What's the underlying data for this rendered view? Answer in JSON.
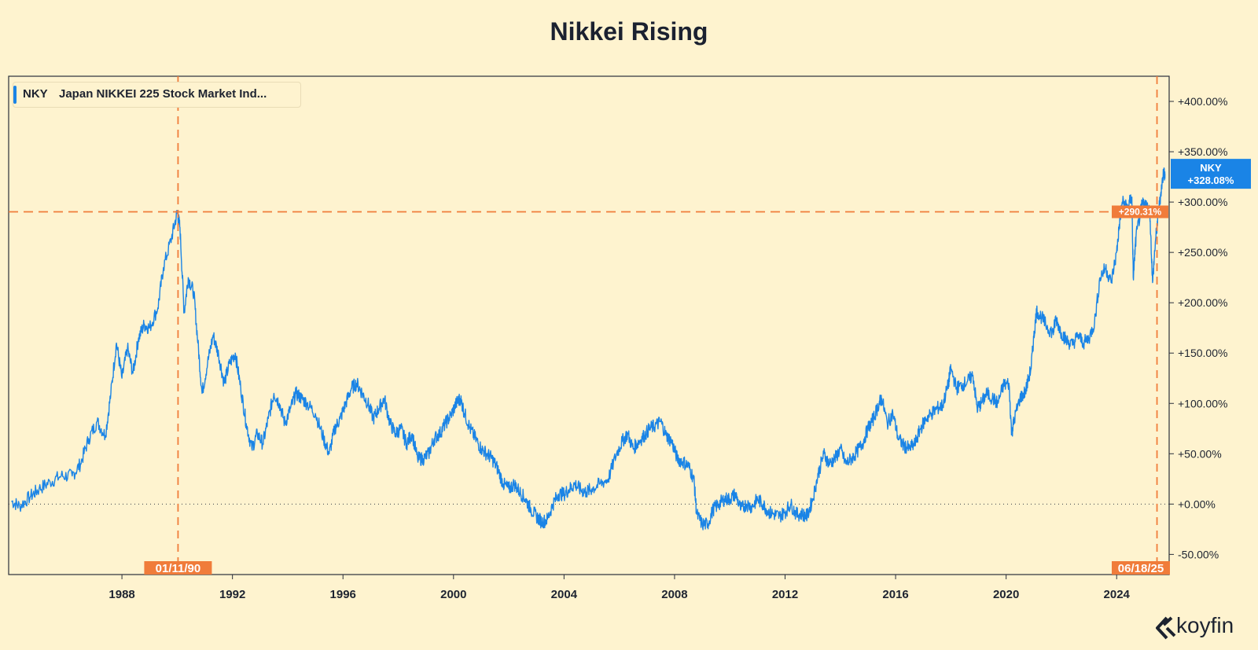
{
  "chart_data": {
    "type": "line",
    "title": "Nikkei Rising",
    "series": [
      {
        "ticker": "NKY",
        "name": "Japan NIKKEI 225 Stock Market Ind...",
        "color": "#1a84e6",
        "last_label": "+328.08%",
        "points": [
          [
            1984.0,
            3
          ],
          [
            1984.3,
            -2
          ],
          [
            1984.7,
            8
          ],
          [
            1985.0,
            15
          ],
          [
            1985.4,
            22
          ],
          [
            1985.8,
            28
          ],
          [
            1986.2,
            28
          ],
          [
            1986.5,
            40
          ],
          [
            1986.8,
            65
          ],
          [
            1987.1,
            82
          ],
          [
            1987.4,
            68
          ],
          [
            1987.6,
            110
          ],
          [
            1987.8,
            160
          ],
          [
            1988.0,
            125
          ],
          [
            1988.2,
            155
          ],
          [
            1988.4,
            130
          ],
          [
            1988.6,
            165
          ],
          [
            1988.8,
            178
          ],
          [
            1989.0,
            175
          ],
          [
            1989.3,
            195
          ],
          [
            1989.5,
            235
          ],
          [
            1989.8,
            265
          ],
          [
            1990.0,
            290
          ],
          [
            1990.1,
            275
          ],
          [
            1990.25,
            190
          ],
          [
            1990.4,
            225
          ],
          [
            1990.6,
            210
          ],
          [
            1990.75,
            160
          ],
          [
            1990.9,
            110
          ],
          [
            1991.1,
            140
          ],
          [
            1991.3,
            168
          ],
          [
            1991.5,
            148
          ],
          [
            1991.7,
            120
          ],
          [
            1991.9,
            140
          ],
          [
            1992.1,
            150
          ],
          [
            1992.3,
            115
          ],
          [
            1992.5,
            80
          ],
          [
            1992.7,
            55
          ],
          [
            1992.9,
            70
          ],
          [
            1993.1,
            60
          ],
          [
            1993.3,
            85
          ],
          [
            1993.5,
            110
          ],
          [
            1993.7,
            100
          ],
          [
            1993.9,
            80
          ],
          [
            1994.1,
            95
          ],
          [
            1994.3,
            110
          ],
          [
            1994.5,
            105
          ],
          [
            1994.7,
            100
          ],
          [
            1995.0,
            90
          ],
          [
            1995.3,
            65
          ],
          [
            1995.5,
            50
          ],
          [
            1995.7,
            75
          ],
          [
            1995.9,
            85
          ],
          [
            1996.1,
            100
          ],
          [
            1996.3,
            115
          ],
          [
            1996.5,
            120
          ],
          [
            1996.7,
            110
          ],
          [
            1996.9,
            100
          ],
          [
            1997.1,
            85
          ],
          [
            1997.3,
            95
          ],
          [
            1997.5,
            105
          ],
          [
            1997.7,
            80
          ],
          [
            1997.9,
            70
          ],
          [
            1998.1,
            75
          ],
          [
            1998.3,
            60
          ],
          [
            1998.5,
            70
          ],
          [
            1998.7,
            45
          ],
          [
            1998.9,
            45
          ],
          [
            1999.1,
            50
          ],
          [
            1999.3,
            65
          ],
          [
            1999.5,
            70
          ],
          [
            1999.7,
            80
          ],
          [
            1999.9,
            88
          ],
          [
            2000.1,
            100
          ],
          [
            2000.25,
            105
          ],
          [
            2000.4,
            90
          ],
          [
            2000.6,
            75
          ],
          [
            2000.8,
            65
          ],
          [
            2001.0,
            55
          ],
          [
            2001.2,
            50
          ],
          [
            2001.4,
            45
          ],
          [
            2001.6,
            35
          ],
          [
            2001.8,
            20
          ],
          [
            2002.0,
            15
          ],
          [
            2002.2,
            20
          ],
          [
            2002.4,
            12
          ],
          [
            2002.6,
            5
          ],
          [
            2002.8,
            -5
          ],
          [
            2003.0,
            -12
          ],
          [
            2003.2,
            -18
          ],
          [
            2003.4,
            -15
          ],
          [
            2003.6,
            0
          ],
          [
            2003.8,
            10
          ],
          [
            2004.0,
            10
          ],
          [
            2004.2,
            15
          ],
          [
            2004.4,
            20
          ],
          [
            2004.6,
            14
          ],
          [
            2004.8,
            12
          ],
          [
            2005.0,
            15
          ],
          [
            2005.3,
            20
          ],
          [
            2005.6,
            25
          ],
          [
            2005.9,
            50
          ],
          [
            2006.1,
            62
          ],
          [
            2006.3,
            70
          ],
          [
            2006.5,
            55
          ],
          [
            2006.7,
            62
          ],
          [
            2006.9,
            68
          ],
          [
            2007.1,
            75
          ],
          [
            2007.3,
            78
          ],
          [
            2007.5,
            82
          ],
          [
            2007.7,
            68
          ],
          [
            2007.9,
            62
          ],
          [
            2008.1,
            45
          ],
          [
            2008.3,
            42
          ],
          [
            2008.5,
            38
          ],
          [
            2008.7,
            25
          ],
          [
            2008.8,
            -10
          ],
          [
            2009.0,
            -20
          ],
          [
            2009.2,
            -20
          ],
          [
            2009.4,
            -5
          ],
          [
            2009.6,
            0
          ],
          [
            2009.8,
            5
          ],
          [
            2010.0,
            5
          ],
          [
            2010.2,
            10
          ],
          [
            2010.4,
            -5
          ],
          [
            2010.6,
            0
          ],
          [
            2010.8,
            -3
          ],
          [
            2011.0,
            5
          ],
          [
            2011.2,
            0
          ],
          [
            2011.4,
            -8
          ],
          [
            2011.6,
            -10
          ],
          [
            2011.8,
            -12
          ],
          [
            2012.0,
            -8
          ],
          [
            2012.2,
            0
          ],
          [
            2012.4,
            -10
          ],
          [
            2012.6,
            -10
          ],
          [
            2012.8,
            -12
          ],
          [
            2013.0,
            5
          ],
          [
            2013.2,
            30
          ],
          [
            2013.4,
            50
          ],
          [
            2013.6,
            40
          ],
          [
            2013.8,
            45
          ],
          [
            2014.0,
            55
          ],
          [
            2014.2,
            40
          ],
          [
            2014.4,
            45
          ],
          [
            2014.6,
            52
          ],
          [
            2014.8,
            60
          ],
          [
            2015.0,
            75
          ],
          [
            2015.2,
            85
          ],
          [
            2015.4,
            100
          ],
          [
            2015.5,
            105
          ],
          [
            2015.7,
            80
          ],
          [
            2015.9,
            90
          ],
          [
            2016.1,
            65
          ],
          [
            2016.3,
            58
          ],
          [
            2016.5,
            55
          ],
          [
            2016.7,
            60
          ],
          [
            2016.9,
            75
          ],
          [
            2017.1,
            85
          ],
          [
            2017.3,
            90
          ],
          [
            2017.5,
            95
          ],
          [
            2017.7,
            98
          ],
          [
            2017.9,
            118
          ],
          [
            2018.0,
            135
          ],
          [
            2018.2,
            115
          ],
          [
            2018.4,
            118
          ],
          [
            2018.6,
            122
          ],
          [
            2018.8,
            128
          ],
          [
            2018.95,
            95
          ],
          [
            2019.1,
            100
          ],
          [
            2019.3,
            110
          ],
          [
            2019.5,
            105
          ],
          [
            2019.7,
            100
          ],
          [
            2019.9,
            118
          ],
          [
            2020.1,
            120
          ],
          [
            2020.2,
            70
          ],
          [
            2020.3,
            85
          ],
          [
            2020.5,
            105
          ],
          [
            2020.7,
            112
          ],
          [
            2020.9,
            135
          ],
          [
            2021.0,
            165
          ],
          [
            2021.1,
            192
          ],
          [
            2021.3,
            185
          ],
          [
            2021.5,
            175
          ],
          [
            2021.7,
            170
          ],
          [
            2021.8,
            185
          ],
          [
            2022.0,
            170
          ],
          [
            2022.2,
            162
          ],
          [
            2022.4,
            158
          ],
          [
            2022.6,
            168
          ],
          [
            2022.8,
            160
          ],
          [
            2023.0,
            165
          ],
          [
            2023.2,
            180
          ],
          [
            2023.4,
            225
          ],
          [
            2023.6,
            235
          ],
          [
            2023.8,
            220
          ],
          [
            2024.0,
            250
          ],
          [
            2024.1,
            278
          ],
          [
            2024.2,
            300
          ],
          [
            2024.4,
            295
          ],
          [
            2024.55,
            305
          ],
          [
            2024.6,
            225
          ],
          [
            2024.7,
            265
          ],
          [
            2024.9,
            295
          ],
          [
            2025.0,
            300
          ],
          [
            2025.2,
            290
          ],
          [
            2025.3,
            220
          ],
          [
            2025.4,
            260
          ],
          [
            2025.5,
            285
          ],
          [
            2025.6,
            310
          ],
          [
            2025.7,
            330
          ],
          [
            2025.75,
            328
          ]
        ]
      }
    ],
    "y_axis": {
      "min": -50,
      "max": 400,
      "ticks": [
        "+400.00%",
        "+350.00%",
        "+300.00%",
        "+250.00%",
        "+200.00%",
        "+150.00%",
        "+100.00%",
        "+50.00%",
        "+0.00%",
        "-50.00%"
      ],
      "tick_values": [
        400,
        350,
        300,
        250,
        200,
        150,
        100,
        50,
        0,
        -50
      ]
    },
    "x_axis": {
      "min": 1983.9,
      "max": 2025.9,
      "ticks": [
        "1988",
        "1992",
        "1996",
        "2000",
        "2004",
        "2008",
        "2012",
        "2016",
        "2020",
        "2024"
      ],
      "tick_values": [
        1988,
        1992,
        1996,
        2000,
        2004,
        2008,
        2012,
        2016,
        2020,
        2024
      ]
    },
    "annotations": {
      "peak_date": "01/11/90",
      "peak_date_x": 1990.03,
      "current_date": "06/18/25",
      "current_date_x": 2025.46,
      "crosshair_label": "+290.31%",
      "crosshair_value": 290.31,
      "zero_line_value": 0,
      "last_value": 328.08
    },
    "colors": {
      "line": "#1a84e6",
      "annotation": "#f07c3a",
      "background": "#fef3cf"
    }
  },
  "brand": {
    "name": "koyfin"
  }
}
